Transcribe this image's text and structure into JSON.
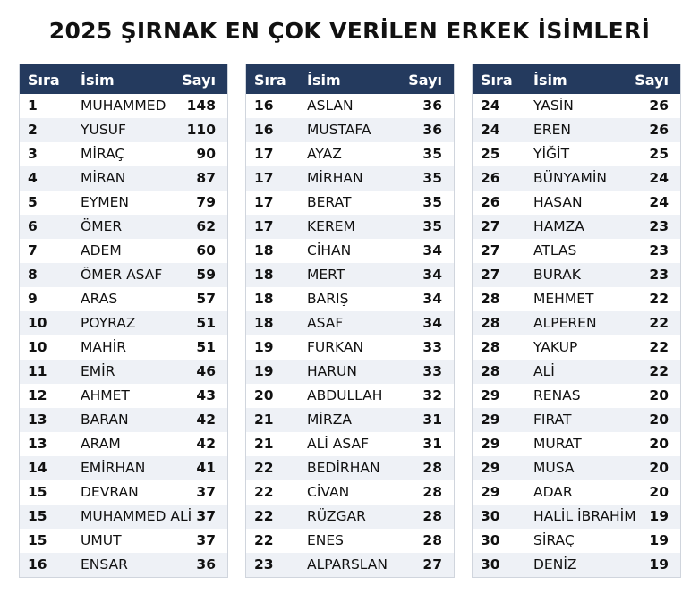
{
  "title": "2025 ŞIRNAK EN ÇOK VERİLEN ERKEK İSİMLERİ",
  "tables": [
    {
      "headers": [
        "Sıra",
        "İsim",
        "Sayı"
      ],
      "rows": [
        [
          1,
          "MUHAMMED",
          148
        ],
        [
          2,
          "YUSUF",
          110
        ],
        [
          3,
          "MİRAÇ",
          90
        ],
        [
          4,
          "MİRAN",
          87
        ],
        [
          5,
          "EYMEN",
          79
        ],
        [
          6,
          "ÖMER",
          62
        ],
        [
          7,
          "ADEM",
          60
        ],
        [
          8,
          "ÖMER ASAF",
          59
        ],
        [
          9,
          "ARAS",
          57
        ],
        [
          10,
          "POYRAZ",
          51
        ],
        [
          10,
          "MAHİR",
          51
        ],
        [
          11,
          "EMİR",
          46
        ],
        [
          12,
          "AHMET",
          43
        ],
        [
          13,
          "BARAN",
          42
        ],
        [
          13,
          "ARAM",
          42
        ],
        [
          14,
          "EMİRHAN",
          41
        ],
        [
          15,
          "DEVRAN",
          37
        ],
        [
          15,
          "MUHAMMED ALİ",
          37
        ],
        [
          15,
          "UMUT",
          37
        ],
        [
          16,
          "ENSAR",
          36
        ]
      ]
    },
    {
      "headers": [
        "Sıra",
        "İsim",
        "Sayı"
      ],
      "rows": [
        [
          16,
          "ASLAN",
          36
        ],
        [
          16,
          "MUSTAFA",
          36
        ],
        [
          17,
          "AYAZ",
          35
        ],
        [
          17,
          "MİRHAN",
          35
        ],
        [
          17,
          "BERAT",
          35
        ],
        [
          17,
          "KEREM",
          35
        ],
        [
          18,
          "CİHAN",
          34
        ],
        [
          18,
          "MERT",
          34
        ],
        [
          18,
          "BARIŞ",
          34
        ],
        [
          18,
          "ASAF",
          34
        ],
        [
          19,
          "FURKAN",
          33
        ],
        [
          19,
          "HARUN",
          33
        ],
        [
          20,
          "ABDULLAH",
          32
        ],
        [
          21,
          "MİRZA",
          31
        ],
        [
          21,
          "ALİ ASAF",
          31
        ],
        [
          22,
          "BEDİRHAN",
          28
        ],
        [
          22,
          "CİVAN",
          28
        ],
        [
          22,
          "RÜZGAR",
          28
        ],
        [
          22,
          "ENES",
          28
        ],
        [
          23,
          "ALPARSLAN",
          27
        ]
      ]
    },
    {
      "headers": [
        "Sıra",
        "İsim",
        "Sayı"
      ],
      "rows": [
        [
          24,
          "YASİN",
          26
        ],
        [
          24,
          "EREN",
          26
        ],
        [
          25,
          "YİĞİT",
          25
        ],
        [
          26,
          "BÜNYAMİN",
          24
        ],
        [
          26,
          "HASAN",
          24
        ],
        [
          27,
          "HAMZA",
          23
        ],
        [
          27,
          "ATLAS",
          23
        ],
        [
          27,
          "BURAK",
          23
        ],
        [
          28,
          "MEHMET",
          22
        ],
        [
          28,
          "ALPEREN",
          22
        ],
        [
          28,
          "YAKUP",
          22
        ],
        [
          28,
          "ALİ",
          22
        ],
        [
          29,
          "RENAS",
          20
        ],
        [
          29,
          "FIRAT",
          20
        ],
        [
          29,
          "MURAT",
          20
        ],
        [
          29,
          "MUSA",
          20
        ],
        [
          29,
          "ADAR",
          20
        ],
        [
          30,
          "HALİL İBRAHİM",
          19
        ],
        [
          30,
          "SİRAÇ",
          19
        ],
        [
          30,
          "DENİZ",
          19
        ]
      ]
    }
  ]
}
